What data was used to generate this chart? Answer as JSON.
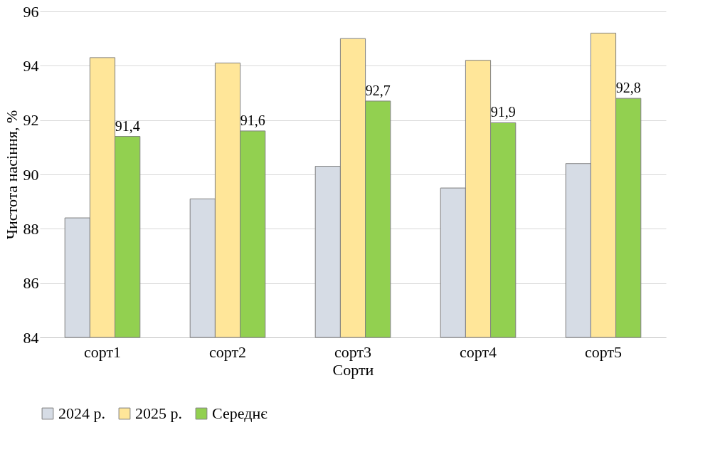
{
  "chart_data": {
    "type": "bar",
    "xlabel": "Сорти",
    "ylabel": "Чистота насіння, %",
    "categories": [
      "сорт1",
      "сорт2",
      "сорт3",
      "сорт4",
      "сорт5"
    ],
    "series": [
      {
        "name": "2024 р.",
        "color": "#d6dce5",
        "values": [
          88.4,
          89.1,
          90.3,
          89.5,
          90.4
        ]
      },
      {
        "name": "2025 р.",
        "color": "#ffe699",
        "values": [
          94.3,
          94.1,
          95.0,
          94.2,
          95.2
        ]
      },
      {
        "name": "Середнє",
        "color": "#92d050",
        "values": [
          91.4,
          91.6,
          92.7,
          91.9,
          92.8
        ],
        "value_labels": [
          "91,4",
          "91,6",
          "92,7",
          "91,9",
          "92,8"
        ]
      }
    ],
    "ylim": [
      84,
      96
    ],
    "yticks": [
      84,
      86,
      88,
      90,
      92,
      94,
      96
    ],
    "grid": "y",
    "legend": "bottom"
  }
}
